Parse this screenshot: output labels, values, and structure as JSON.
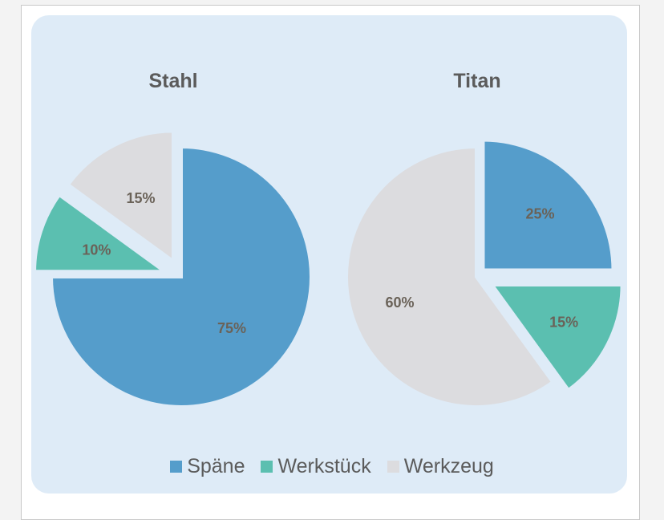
{
  "chart_data": [
    {
      "type": "pie",
      "title": "Stahl",
      "slices": [
        {
          "category": "Späne",
          "value": 75,
          "label": "75%"
        },
        {
          "category": "Werkstück",
          "value": 10,
          "label": "10%"
        },
        {
          "category": "Werkzeug",
          "value": 15,
          "label": "15%"
        }
      ]
    },
    {
      "type": "pie",
      "title": "Titan",
      "slices": [
        {
          "category": "Späne",
          "value": 25,
          "label": "25%"
        },
        {
          "category": "Werkstück",
          "value": 15,
          "label": "15%"
        },
        {
          "category": "Werkzeug",
          "value": 60,
          "label": "60%"
        }
      ]
    }
  ],
  "legend": [
    {
      "label": "Späne",
      "color": "#559dcb"
    },
    {
      "label": "Werkstück",
      "color": "#5bbfb0"
    },
    {
      "label": "Werkzeug",
      "color": "#dcdcdf"
    }
  ],
  "colors": {
    "panel_background": "#deebf7",
    "separator": "#deebf7"
  }
}
